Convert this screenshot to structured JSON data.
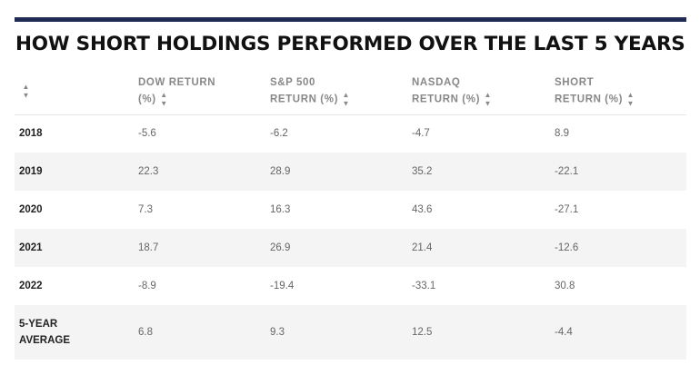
{
  "title": "HOW SHORT HOLDINGS PERFORMED OVER THE LAST 5 YEARS",
  "sort_glyph": "▲▼",
  "columns": [
    {
      "line1": "",
      "line2": ""
    },
    {
      "line1": "DOW RETURN",
      "line2": "(%)"
    },
    {
      "line1": "S&P 500",
      "line2": "RETURN (%)"
    },
    {
      "line1": "NASDAQ",
      "line2": "RETURN (%)"
    },
    {
      "line1": "SHORT",
      "line2": "RETURN (%)"
    }
  ],
  "rows": [
    {
      "label": "2018",
      "dow": "-5.6",
      "sp500": "-6.2",
      "nasdaq": "-4.7",
      "short": "8.9"
    },
    {
      "label": "2019",
      "dow": "22.3",
      "sp500": "28.9",
      "nasdaq": "35.2",
      "short": "-22.1"
    },
    {
      "label": "2020",
      "dow": "7.3",
      "sp500": "16.3",
      "nasdaq": "43.6",
      "short": "-27.1"
    },
    {
      "label": "2021",
      "dow": "18.7",
      "sp500": "26.9",
      "nasdaq": "21.4",
      "short": "-12.6"
    },
    {
      "label": "2022",
      "dow": "-8.9",
      "sp500": "-19.4",
      "nasdaq": "-33.1",
      "short": "30.8"
    }
  ],
  "average": {
    "label_line1": "5-YEAR",
    "label_line2": "AVERAGE",
    "dow": "6.8",
    "sp500": "9.3",
    "nasdaq": "12.5",
    "short": "-4.4"
  },
  "colors": {
    "rule": "#1f2a55",
    "stripe": "#f4f4f4",
    "header_text": "#888888"
  }
}
